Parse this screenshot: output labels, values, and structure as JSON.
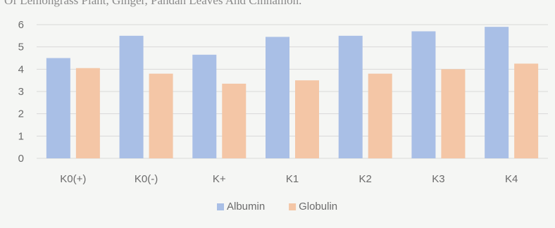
{
  "caption": "Of Lemongrass Plant, Ginger, Pandan Leaves And Cinnamon.",
  "chart_data": {
    "type": "bar",
    "title": "",
    "xlabel": "",
    "ylabel": "",
    "categories": [
      "K0(+)",
      "K0(-)",
      "K+",
      "K1",
      "K2",
      "K3",
      "K4"
    ],
    "series": [
      {
        "name": "Albumin",
        "color": "#a9bfe6",
        "values": [
          4.5,
          5.5,
          4.65,
          5.45,
          5.5,
          5.7,
          5.9
        ]
      },
      {
        "name": "Globulin",
        "color": "#f4c6a6",
        "values": [
          4.05,
          3.8,
          3.35,
          3.5,
          3.8,
          4.0,
          4.25
        ]
      }
    ],
    "ylim": [
      0,
      6
    ],
    "yticks": [
      0,
      1,
      2,
      3,
      4,
      5,
      6
    ],
    "grid": true,
    "legend": "bottom-center"
  }
}
